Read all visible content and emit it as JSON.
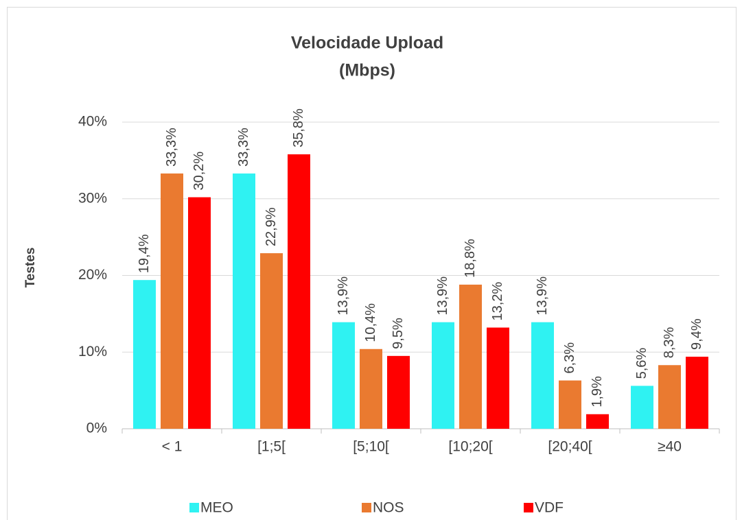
{
  "chart_data": {
    "type": "bar",
    "title": "Velocidade Upload",
    "subtitle": "(Mbps)",
    "y_label": "Testes",
    "categories": [
      "< 1",
      "[1;5[",
      "[5;10[",
      "[10;20[",
      "[20;40[",
      "≥40"
    ],
    "series": [
      {
        "name": "MEO",
        "color": "#2ff2f2",
        "values": [
          19.4,
          33.3,
          13.9,
          13.9,
          13.9,
          5.6
        ],
        "value_labels": [
          "19,4%",
          "33,3%",
          "13,9%",
          "13,9%",
          "13,9%",
          "5,6%"
        ]
      },
      {
        "name": "NOS",
        "color": "#ea7a30",
        "values": [
          33.3,
          22.9,
          10.4,
          18.8,
          6.3,
          8.3
        ],
        "value_labels": [
          "33,3%",
          "22,9%",
          "10,4%",
          "18,8%",
          "6,3%",
          "8,3%"
        ]
      },
      {
        "name": "VDF",
        "color": "#ff0000",
        "values": [
          30.2,
          35.8,
          9.5,
          13.2,
          1.9,
          9.4
        ],
        "value_labels": [
          "30,2%",
          "35,8%",
          "9,5%",
          "13,2%",
          "1,9%",
          "9,4%"
        ]
      }
    ],
    "ylim": [
      0,
      40
    ],
    "yticks": [
      {
        "value": 0,
        "label": "0%"
      },
      {
        "value": 10,
        "label": "10%"
      },
      {
        "value": 20,
        "label": "20%"
      },
      {
        "value": 30,
        "label": "30%"
      },
      {
        "value": 40,
        "label": "40%"
      }
    ],
    "grid": true,
    "legend": "bottom"
  }
}
